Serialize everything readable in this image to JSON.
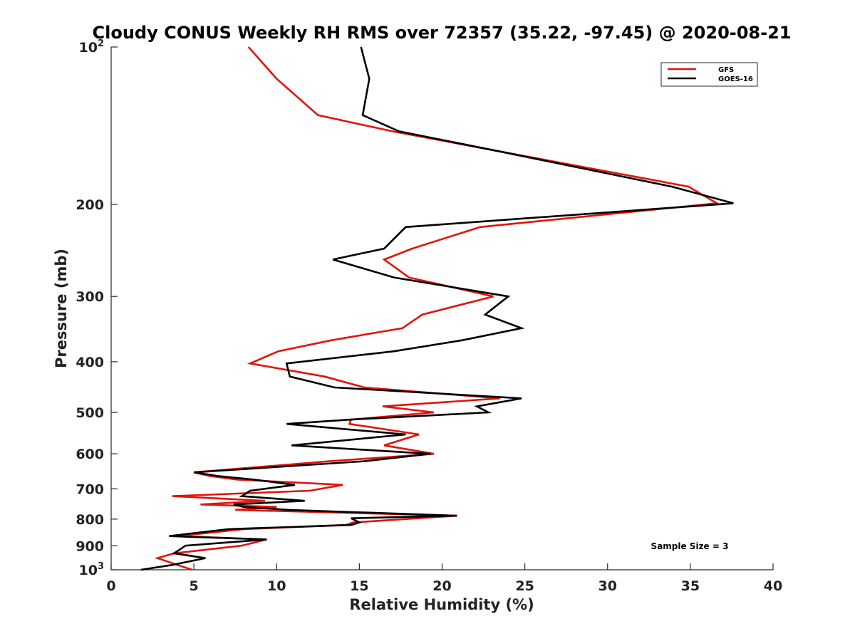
{
  "chart_data": {
    "type": "line",
    "title": "Cloudy CONUS Weekly RH RMS over 72357 (35.22, -97.45) @ 2020-08-21",
    "xlabel": "Relative Humidity (%)",
    "ylabel": "Pressure (mb)",
    "xlim": [
      0,
      40
    ],
    "ylim": [
      100,
      1000
    ],
    "y_scale": "log",
    "y_reversed": true,
    "x_ticks": [
      "0",
      "5",
      "10",
      "15",
      "20",
      "25",
      "30",
      "35",
      "40"
    ],
    "y_ticks": [
      {
        "value": 100,
        "base": "10",
        "exp": "2"
      },
      {
        "value": 200,
        "label": "200"
      },
      {
        "value": 300,
        "label": "300"
      },
      {
        "value": 400,
        "label": "400"
      },
      {
        "value": 500,
        "label": "500"
      },
      {
        "value": 600,
        "label": "600"
      },
      {
        "value": 700,
        "label": "700"
      },
      {
        "value": 800,
        "label": "800"
      },
      {
        "value": 900,
        "label": "900"
      },
      {
        "value": 1000,
        "base": "10",
        "exp": "3"
      }
    ],
    "legend_position": "top-right",
    "annotation": "Sample Size = 3",
    "series": [
      {
        "name": "GFS",
        "color": "#e3120b",
        "points": [
          [
            8.3,
            100
          ],
          [
            10.0,
            115
          ],
          [
            12.5,
            135
          ],
          [
            17.0,
            145
          ],
          [
            23.3,
            158
          ],
          [
            34.9,
            185
          ],
          [
            36.6,
            199
          ],
          [
            22.3,
            221
          ],
          [
            18.2,
            243
          ],
          [
            16.5,
            255
          ],
          [
            18.0,
            276
          ],
          [
            23.1,
            300
          ],
          [
            18.8,
            325
          ],
          [
            17.6,
            345
          ],
          [
            13.3,
            364
          ],
          [
            10.1,
            382
          ],
          [
            8.4,
            403
          ],
          [
            12.9,
            427
          ],
          [
            15.3,
            448
          ],
          [
            23.5,
            470
          ],
          [
            16.4,
            487
          ],
          [
            19.5,
            500
          ],
          [
            14.5,
            516
          ],
          [
            14.4,
            526
          ],
          [
            18.6,
            551
          ],
          [
            16.5,
            578
          ],
          [
            19.5,
            600
          ],
          [
            13.2,
            620
          ],
          [
            5.0,
            651
          ],
          [
            6.0,
            662
          ],
          [
            7.6,
            672
          ],
          [
            14.0,
            688
          ],
          [
            12.0,
            706
          ],
          [
            3.7,
            723
          ],
          [
            9.3,
            738
          ],
          [
            5.4,
            750
          ],
          [
            10.0,
            758
          ],
          [
            7.5,
            768
          ],
          [
            20.9,
            788
          ],
          [
            18.5,
            797
          ],
          [
            14.6,
            812
          ],
          [
            14.2,
            821
          ],
          [
            8.0,
            836
          ],
          [
            4.0,
            862
          ],
          [
            9.4,
            875
          ],
          [
            7.9,
            899
          ],
          [
            3.8,
            930
          ],
          [
            2.8,
            950
          ],
          [
            4.0,
            979
          ],
          [
            4.9,
            1000
          ]
        ]
      },
      {
        "name": "GOES-16",
        "color": "#000000",
        "points": [
          [
            15.1,
            100
          ],
          [
            15.6,
            115
          ],
          [
            15.2,
            135
          ],
          [
            17.4,
            145
          ],
          [
            23.3,
            158
          ],
          [
            33.9,
            185
          ],
          [
            37.6,
            199
          ],
          [
            17.8,
            221
          ],
          [
            16.5,
            243
          ],
          [
            13.4,
            255
          ],
          [
            17.1,
            276
          ],
          [
            24.0,
            300
          ],
          [
            22.6,
            325
          ],
          [
            24.8,
            345
          ],
          [
            21.2,
            364
          ],
          [
            17.1,
            382
          ],
          [
            10.6,
            403
          ],
          [
            10.8,
            427
          ],
          [
            13.5,
            448
          ],
          [
            24.8,
            470
          ],
          [
            22.1,
            487
          ],
          [
            22.8,
            500
          ],
          [
            14.5,
            516
          ],
          [
            10.6,
            526
          ],
          [
            17.8,
            551
          ],
          [
            10.9,
            578
          ],
          [
            19.3,
            600
          ],
          [
            15.3,
            620
          ],
          [
            5.0,
            651
          ],
          [
            6.5,
            662
          ],
          [
            8.6,
            672
          ],
          [
            11.1,
            688
          ],
          [
            8.4,
            706
          ],
          [
            7.9,
            723
          ],
          [
            11.7,
            738
          ],
          [
            7.4,
            750
          ],
          [
            8.0,
            758
          ],
          [
            10.7,
            768
          ],
          [
            20.9,
            788
          ],
          [
            14.5,
            797
          ],
          [
            15.0,
            812
          ],
          [
            14.5,
            821
          ],
          [
            7.1,
            836
          ],
          [
            3.5,
            862
          ],
          [
            9.4,
            875
          ],
          [
            4.5,
            899
          ],
          [
            3.8,
            930
          ],
          [
            5.7,
            950
          ],
          [
            3.7,
            979
          ],
          [
            1.8,
            1000
          ]
        ]
      }
    ]
  }
}
